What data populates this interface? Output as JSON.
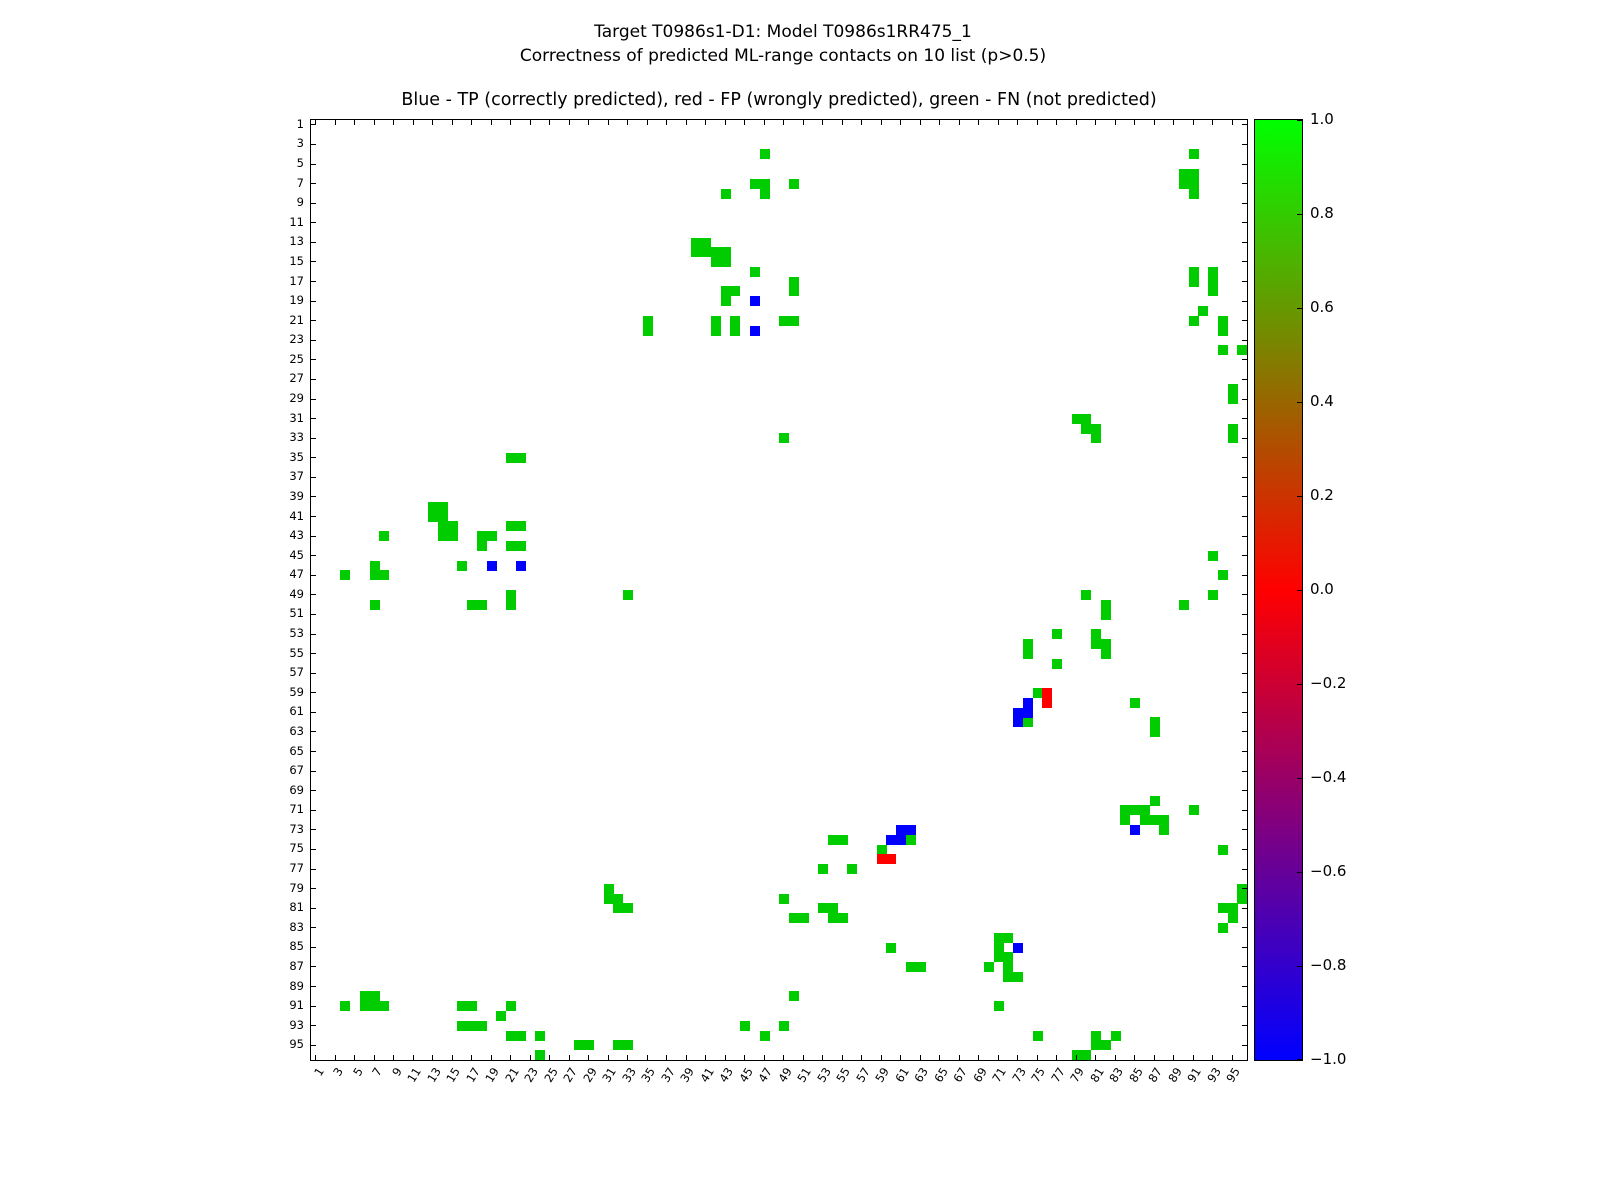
{
  "figure": {
    "suptitle_line1": "Target T0986s1-D1: Model T0986s1RR475_1",
    "suptitle_line2": "Correctness of predicted ML-range contacts on 10 list (p>0.5)"
  },
  "chart_data": {
    "type": "heatmap",
    "title": "Blue - TP (correctly predicted), red - FP (wrongly predicted), green - FN (not predicted)",
    "xlabel": "",
    "ylabel": "",
    "grid_size": 96,
    "axis_range": [
      1,
      96
    ],
    "symmetric": true,
    "grid": false,
    "x_ticks": [
      1,
      3,
      5,
      7,
      9,
      11,
      13,
      15,
      17,
      19,
      21,
      23,
      25,
      27,
      29,
      31,
      33,
      35,
      37,
      39,
      41,
      43,
      45,
      47,
      49,
      51,
      53,
      55,
      57,
      59,
      61,
      63,
      65,
      67,
      69,
      71,
      73,
      75,
      77,
      79,
      81,
      83,
      85,
      87,
      89,
      91,
      93,
      95
    ],
    "y_ticks": [
      1,
      3,
      5,
      7,
      9,
      11,
      13,
      15,
      17,
      19,
      21,
      23,
      25,
      27,
      29,
      31,
      33,
      35,
      37,
      39,
      41,
      43,
      45,
      47,
      49,
      51,
      53,
      55,
      57,
      59,
      61,
      63,
      65,
      67,
      69,
      71,
      73,
      75,
      77,
      79,
      81,
      83,
      85,
      87,
      89,
      91,
      93,
      95
    ],
    "statuses": {
      "TP": {
        "meaning": "correctly predicted",
        "color": "#0000ff",
        "value": -1
      },
      "FP": {
        "meaning": "wrongly predicted",
        "color": "#ff0000",
        "value": 0
      },
      "FN": {
        "meaning": "not predicted",
        "color": "#00cc00",
        "value": 1
      }
    },
    "contacts": [
      [
        4,
        47,
        "FN"
      ],
      [
        7,
        46,
        "FN"
      ],
      [
        7,
        47,
        "FN"
      ],
      [
        8,
        47,
        "FN"
      ],
      [
        7,
        50,
        "FN"
      ],
      [
        8,
        43,
        "FN"
      ],
      [
        4,
        91,
        "FN"
      ],
      [
        6,
        90,
        "FN"
      ],
      [
        6,
        91,
        "FN"
      ],
      [
        7,
        90,
        "FN"
      ],
      [
        7,
        91,
        "FN"
      ],
      [
        8,
        91,
        "FN"
      ],
      [
        13,
        40,
        "FN"
      ],
      [
        13,
        41,
        "FN"
      ],
      [
        14,
        40,
        "FN"
      ],
      [
        14,
        41,
        "FN"
      ],
      [
        14,
        42,
        "FN"
      ],
      [
        14,
        43,
        "FN"
      ],
      [
        15,
        42,
        "FN"
      ],
      [
        15,
        43,
        "FN"
      ],
      [
        16,
        46,
        "FN"
      ],
      [
        17,
        50,
        "FN"
      ],
      [
        18,
        50,
        "FN"
      ],
      [
        18,
        43,
        "FN"
      ],
      [
        18,
        44,
        "FN"
      ],
      [
        19,
        43,
        "FN"
      ],
      [
        21,
        42,
        "FN"
      ],
      [
        22,
        42,
        "FN"
      ],
      [
        21,
        44,
        "FN"
      ],
      [
        22,
        44,
        "FN"
      ],
      [
        21,
        49,
        "FN"
      ],
      [
        21,
        50,
        "FN"
      ],
      [
        21,
        35,
        "FN"
      ],
      [
        22,
        35,
        "FN"
      ],
      [
        16,
        91,
        "FN"
      ],
      [
        17,
        91,
        "FN"
      ],
      [
        16,
        93,
        "FN"
      ],
      [
        17,
        93,
        "FN"
      ],
      [
        18,
        93,
        "FN"
      ],
      [
        20,
        92,
        "FN"
      ],
      [
        21,
        91,
        "FN"
      ],
      [
        21,
        94,
        "FN"
      ],
      [
        22,
        94,
        "FN"
      ],
      [
        24,
        94,
        "FN"
      ],
      [
        24,
        96,
        "FN"
      ],
      [
        28,
        95,
        "FN"
      ],
      [
        29,
        95,
        "FN"
      ],
      [
        31,
        79,
        "FN"
      ],
      [
        31,
        80,
        "FN"
      ],
      [
        32,
        80,
        "FN"
      ],
      [
        32,
        81,
        "FN"
      ],
      [
        33,
        81,
        "FN"
      ],
      [
        32,
        95,
        "FN"
      ],
      [
        33,
        95,
        "FN"
      ],
      [
        33,
        49,
        "FN"
      ],
      [
        45,
        93,
        "FN"
      ],
      [
        47,
        94,
        "FN"
      ],
      [
        49,
        93,
        "FN"
      ],
      [
        49,
        80,
        "FN"
      ],
      [
        50,
        82,
        "FN"
      ],
      [
        51,
        82,
        "FN"
      ],
      [
        50,
        90,
        "FN"
      ],
      [
        53,
        77,
        "FN"
      ],
      [
        56,
        77,
        "FN"
      ],
      [
        54,
        74,
        "FN"
      ],
      [
        55,
        74,
        "FN"
      ],
      [
        53,
        81,
        "FN"
      ],
      [
        54,
        81,
        "FN"
      ],
      [
        54,
        82,
        "FN"
      ],
      [
        55,
        82,
        "FN"
      ],
      [
        59,
        75,
        "FN"
      ],
      [
        62,
        74,
        "FN"
      ],
      [
        60,
        85,
        "FN"
      ],
      [
        62,
        87,
        "FN"
      ],
      [
        63,
        87,
        "FN"
      ],
      [
        70,
        87,
        "FN"
      ],
      [
        71,
        84,
        "FN"
      ],
      [
        71,
        85,
        "FN"
      ],
      [
        71,
        86,
        "FN"
      ],
      [
        72,
        84,
        "FN"
      ],
      [
        72,
        86,
        "FN"
      ],
      [
        72,
        87,
        "FN"
      ],
      [
        72,
        88,
        "FN"
      ],
      [
        71,
        91,
        "FN"
      ],
      [
        73,
        88,
        "FN"
      ],
      [
        75,
        94,
        "FN"
      ],
      [
        79,
        96,
        "FN"
      ],
      [
        80,
        96,
        "FN"
      ],
      [
        81,
        94,
        "FN"
      ],
      [
        81,
        95,
        "FN"
      ],
      [
        82,
        95,
        "FN"
      ],
      [
        83,
        94,
        "FN"
      ],
      [
        19,
        46,
        "TP"
      ],
      [
        22,
        46,
        "TP"
      ],
      [
        60,
        74,
        "TP"
      ],
      [
        61,
        73,
        "TP"
      ],
      [
        61,
        74,
        "TP"
      ],
      [
        62,
        73,
        "TP"
      ],
      [
        73,
        85,
        "TP"
      ],
      [
        59,
        76,
        "FP"
      ],
      [
        60,
        76,
        "FP"
      ]
    ],
    "colorbar": {
      "min": -1.0,
      "max": 1.0,
      "tick_labels": [
        "1.0",
        "0.8",
        "0.6",
        "0.4",
        "0.2",
        "0.0",
        "−0.2",
        "−0.4",
        "−0.6",
        "−0.8",
        "−1.0"
      ],
      "gradient_top": "#00ff00",
      "gradient_middle": "#ff0000",
      "gradient_bottom": "#0000ff",
      "position": "right"
    }
  }
}
